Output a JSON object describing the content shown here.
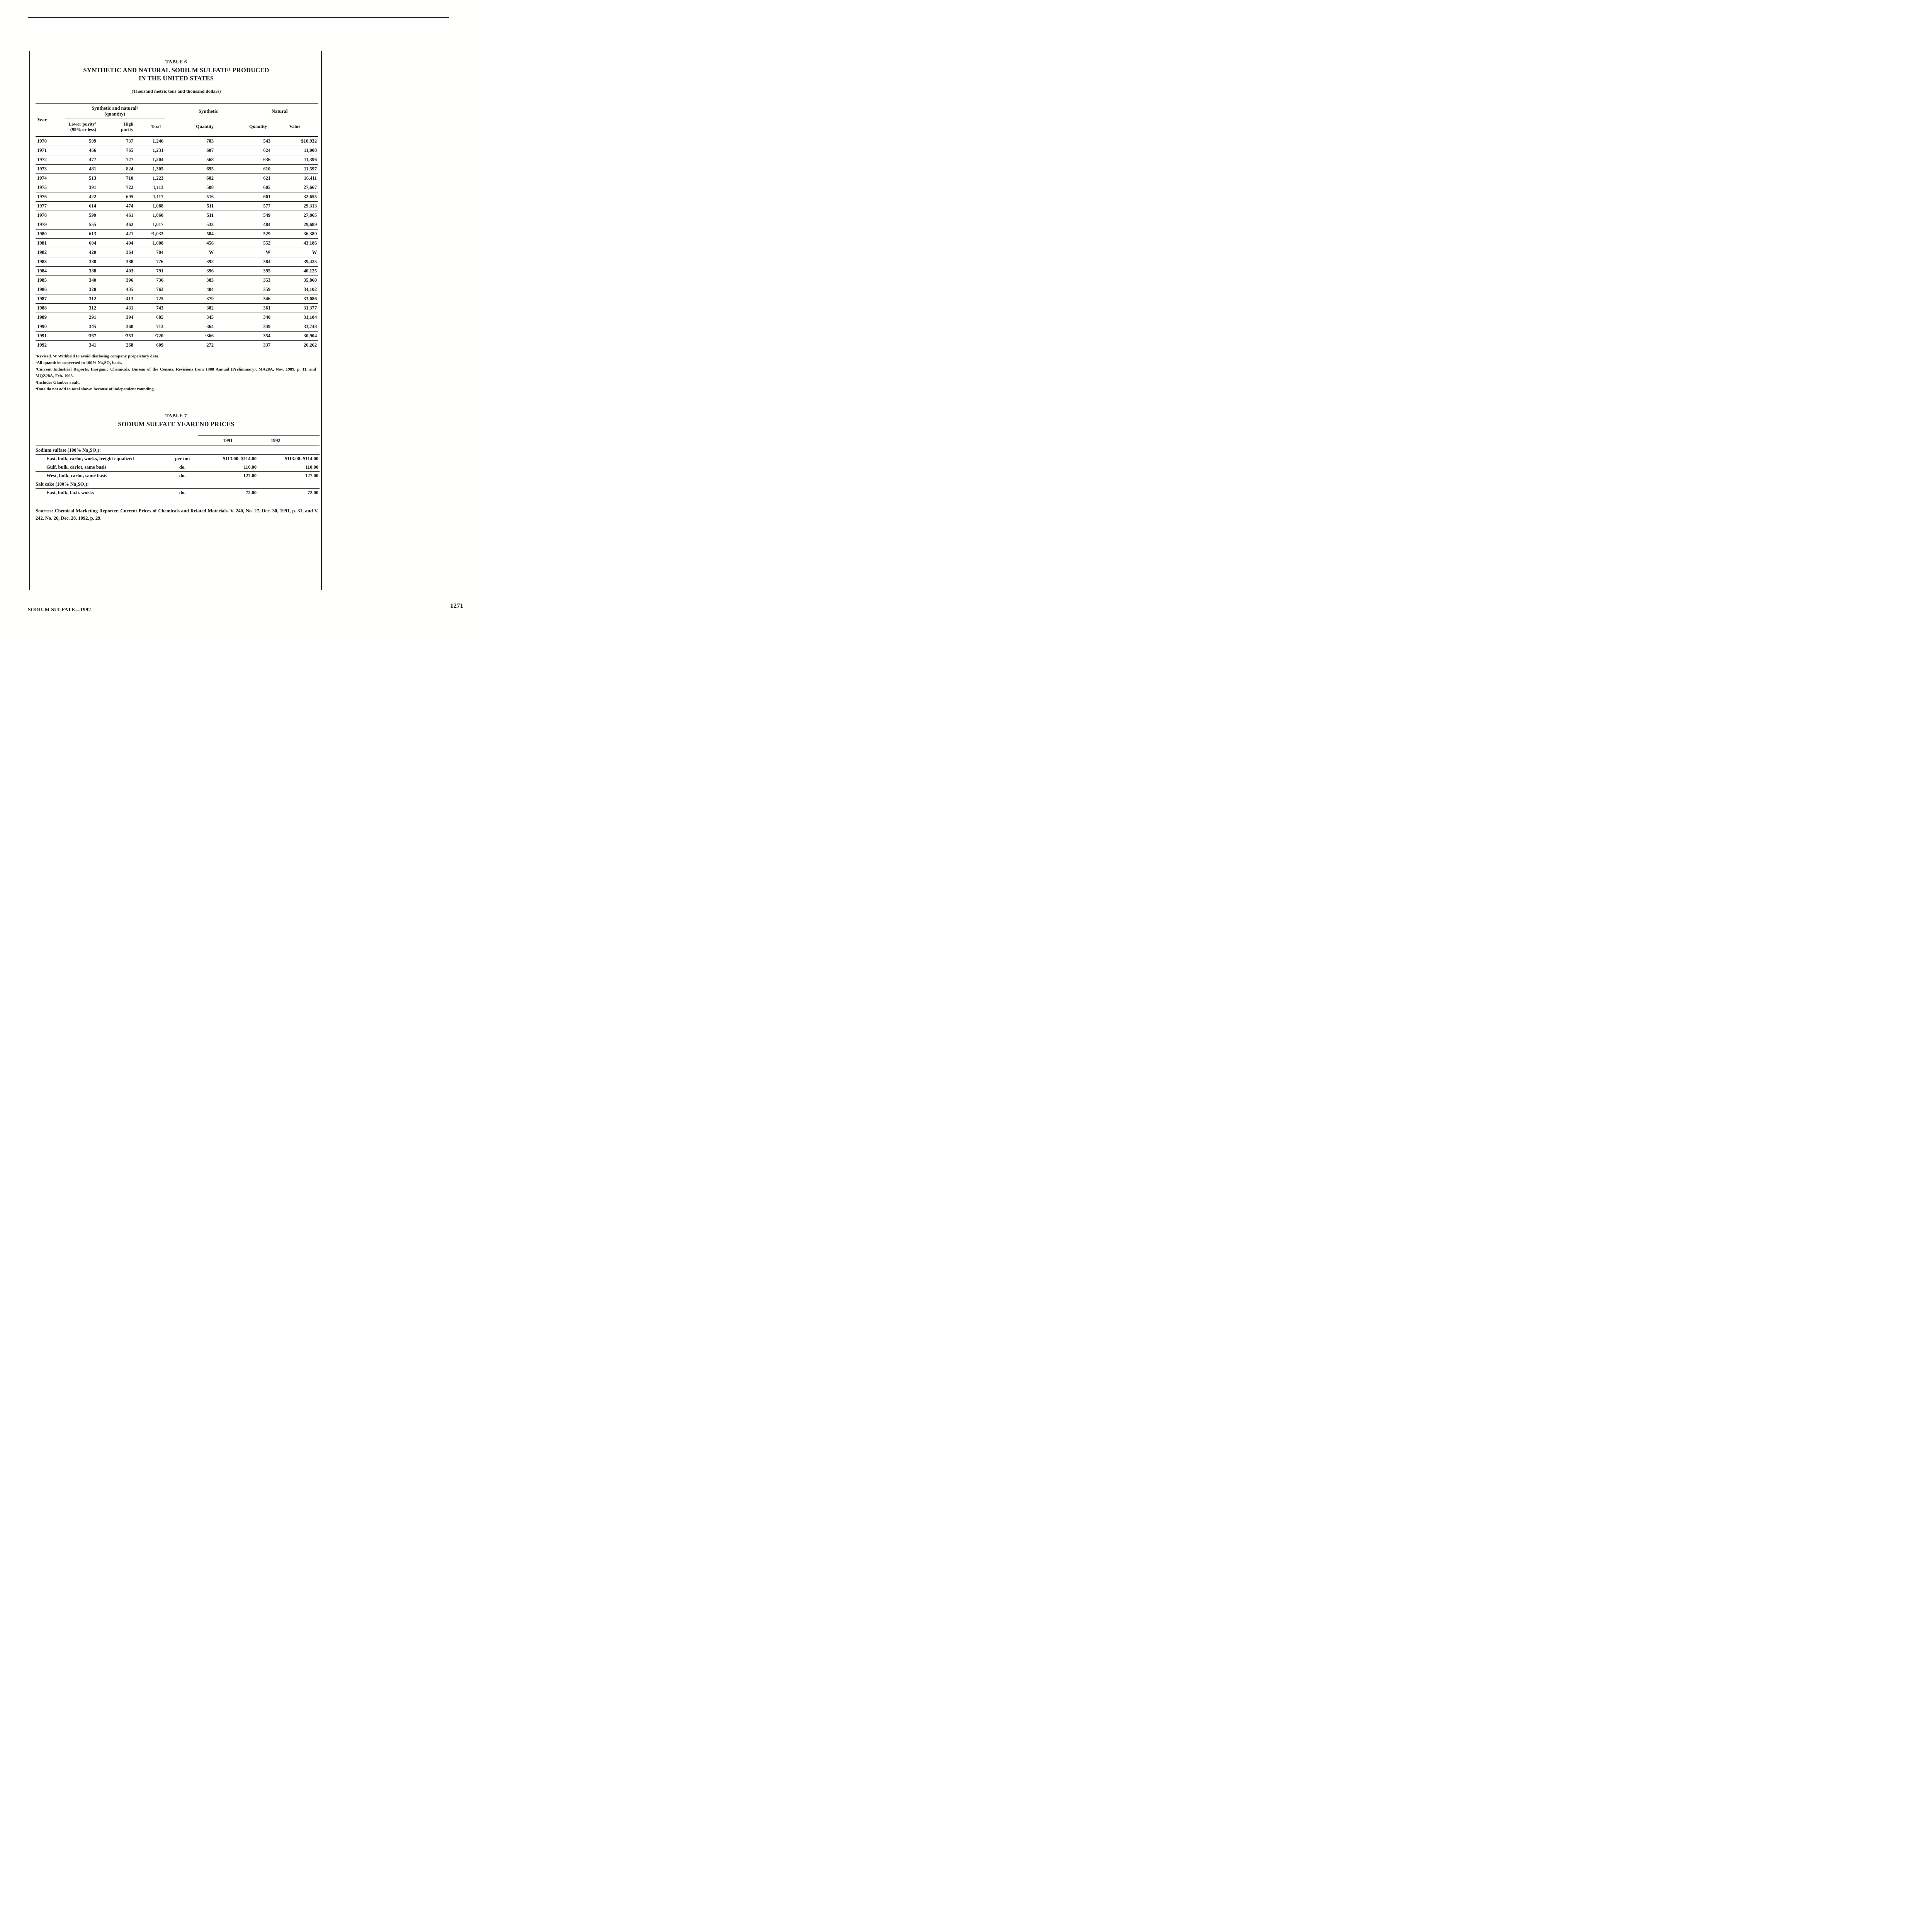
{
  "page": {
    "footer_left": "SODIUM SULFATE—1992",
    "page_number": "1271"
  },
  "table6": {
    "label": "TABLE 6",
    "title_line1": "SYNTHETIC AND NATURAL SODIUM SULFATE¹ PRODUCED",
    "title_line2": "IN THE UNITED STATES",
    "subtitle": "(Thousand metric tons and thousand dollars)",
    "headers": {
      "year": "Year",
      "syn_nat_group_line1": "Synthetic and natural²",
      "syn_nat_group_line2": "(quantity)",
      "synthetic_group": "Synthetic",
      "natural_group": "Natural",
      "lower_purity_line1": "Lower purity³",
      "lower_purity_line2": "(99% or less)",
      "high_purity_line1": "High",
      "high_purity_line2": "purity",
      "total": "Total",
      "synthetic_quantity": "Quantity",
      "natural_quantity": "Quantity",
      "natural_value": "Value"
    },
    "rows": [
      [
        "1970",
        "509",
        "737",
        "1,246",
        "703",
        "543",
        "$10,932"
      ],
      [
        "1971",
        "466",
        "765",
        "1,231",
        "607",
        "624",
        "11,008"
      ],
      [
        "1972",
        "477",
        "727",
        "1,204",
        "568",
        "636",
        "11,396"
      ],
      [
        "1973",
        "481",
        "824",
        "1,305",
        "695",
        "610",
        "11,597"
      ],
      [
        "1974",
        "513",
        "710",
        "1,223",
        "602",
        "621",
        "16,411"
      ],
      [
        "1975",
        "391",
        "722",
        "1,113",
        "508",
        "605",
        "27,667"
      ],
      [
        "1976",
        "422",
        "695",
        "1,117",
        "516",
        "601",
        "32,655"
      ],
      [
        "1977",
        "614",
        "474",
        "1,088",
        "511",
        "577",
        "29,313"
      ],
      [
        "1978",
        "599",
        "461",
        "1,060",
        "511",
        "549",
        "27,865"
      ],
      [
        "1979",
        "555",
        "462",
        "1,017",
        "533",
        "484",
        "29,689"
      ],
      [
        "1980",
        "613",
        "421",
        "⁴1,033",
        "504",
        "529",
        "36,389"
      ],
      [
        "1981",
        "604",
        "404",
        "1,008",
        "456",
        "552",
        "43,186"
      ],
      [
        "1982",
        "420",
        "364",
        "784",
        "W",
        "W",
        "W"
      ],
      [
        "1983",
        "388",
        "388",
        "776",
        "392",
        "384",
        "39,425"
      ],
      [
        "1984",
        "388",
        "403",
        "791",
        "396",
        "395",
        "40,125"
      ],
      [
        "1985",
        "340",
        "396",
        "736",
        "383",
        "353",
        "35,860"
      ],
      [
        "1986",
        "328",
        "435",
        "763",
        "404",
        "359",
        "34,102"
      ],
      [
        "1987",
        "312",
        "413",
        "725",
        "379",
        "346",
        "33,086"
      ],
      [
        "1988",
        "312",
        "431",
        "743",
        "382",
        "361",
        "31,377"
      ],
      [
        "1989",
        "291",
        "394",
        "685",
        "345",
        "340",
        "31,104"
      ],
      [
        "1990",
        "345",
        "368",
        "713",
        "364",
        "349",
        "33,748"
      ],
      [
        "1991",
        "ʳ367",
        "ʳ353",
        "ʳ720",
        "ʳ366",
        "354",
        "30,904"
      ],
      [
        "1992",
        "341",
        "268",
        "609",
        "272",
        "337",
        "26,262"
      ]
    ],
    "footnotes": [
      "ʳRevised. W Withheld to avoid disclosing company proprietary data.",
      "¹All quantities converted to 100% Na₂SO₄ basis.",
      "²Current Industrial Reports, Inorganic Chemicals, Bureau of the Census. Revisions from 1988 Annual (Preliminary), MA28A, Nov. 1989, p. 11, and MQZ28A, Feb. 1993.",
      "³Includes Glauber's salt.",
      "⁴Data do not add to total shown because of independent rounding."
    ]
  },
  "table7": {
    "label": "TABLE 7",
    "title": "SODIUM SULFATE YEAREND PRICES",
    "year_headers": [
      "1991",
      "1992"
    ],
    "rows": [
      {
        "type": "section",
        "label": "Sodium sulfate (100% Na₂SO₄):"
      },
      {
        "type": "item",
        "label": "East, bulk, carlot, works, freight equalized",
        "unit": "per ton",
        "y1991": "$113.00- $114.00",
        "y1992": "$113.00- $114.00"
      },
      {
        "type": "item",
        "label": "Gulf, bulk, carlot, same basis",
        "unit": "do.",
        "y1991": "110.00",
        "y1992": "110.00"
      },
      {
        "type": "item",
        "label": "West, bulk, carlot, same basis",
        "unit": "do.",
        "y1991": "127.00",
        "y1992": "127.00"
      },
      {
        "type": "section",
        "label": "Salt cake (100% Na₂SO₄):"
      },
      {
        "type": "item",
        "label": "East, bulk, f.o.b. works",
        "unit": "do.",
        "y1991": "72.00",
        "y1992": "72.00"
      }
    ],
    "sources": "Sources: Chemical Marketing Reporter. Current Prices of Chemicals and Related Materials. V. 240, No. 27, Dec. 30, 1991, p. 31, and V. 242, No. 26, Dec. 28, 1992, p. 29."
  }
}
